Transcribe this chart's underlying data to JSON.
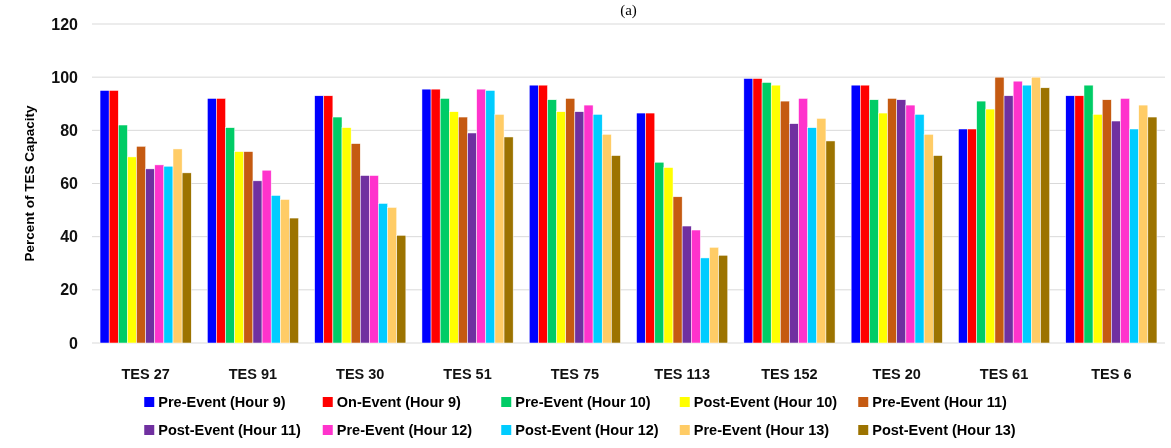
{
  "chart_data": {
    "type": "bar",
    "title": "(a)",
    "ylabel": "Percent of TES Capacity",
    "categories": [
      "TES 27",
      "TES 91",
      "TES 30",
      "TES 51",
      "TES 75",
      "TES 113",
      "TES 152",
      "TES 20",
      "TES 61",
      "TES 6"
    ],
    "series": [
      {
        "name": "Pre-Event (Hour 9)",
        "color": "#0000ff",
        "values": [
          95,
          92,
          93,
          95.5,
          97,
          86.5,
          99.5,
          97,
          80.5,
          93
        ]
      },
      {
        "name": "On-Event (Hour 9)",
        "color": "#ff0000",
        "values": [
          95,
          92,
          93,
          95.5,
          97,
          86.5,
          99.5,
          97,
          80.5,
          93
        ]
      },
      {
        "name": "Pre-Event (Hour 10)",
        "color": "#00cc66",
        "values": [
          82,
          81,
          85,
          92,
          91.5,
          68,
          98,
          91.5,
          91,
          97
        ]
      },
      {
        "name": "Post-Event (Hour 10)",
        "color": "#ffff00",
        "values": [
          70,
          72,
          81,
          87,
          87,
          66,
          97,
          86.5,
          88,
          86
        ]
      },
      {
        "name": "Pre-Event (Hour 11)",
        "color": "#c55a11",
        "values": [
          74,
          72,
          75,
          85,
          92,
          55,
          91,
          92,
          100,
          91.5
        ]
      },
      {
        "name": "Post-Event (Hour 11)",
        "color": "#7030a0",
        "values": [
          65.5,
          61,
          63,
          79,
          87,
          44,
          82.5,
          91.5,
          93,
          83.5
        ]
      },
      {
        "name": "Pre-Event (Hour 12)",
        "color": "#ff33cc",
        "values": [
          67,
          65,
          63,
          95.5,
          89.5,
          42.5,
          92,
          89.5,
          98.5,
          92
        ]
      },
      {
        "name": "Post-Event (Hour 12)",
        "color": "#00ccff",
        "values": [
          66.5,
          55.5,
          52.5,
          95,
          86,
          32,
          81,
          86,
          97,
          80.5
        ]
      },
      {
        "name": "Pre-Event (Hour 13)",
        "color": "#ffcc66",
        "values": [
          73,
          54,
          51,
          86,
          78.5,
          36,
          84.5,
          78.5,
          100,
          89.5
        ]
      },
      {
        "name": "Post-Event (Hour 13)",
        "color": "#9c7300",
        "values": [
          64,
          47,
          40.5,
          77.5,
          70.5,
          33,
          76,
          70.5,
          96,
          85
        ]
      }
    ],
    "ylim": [
      0,
      120
    ],
    "yticks": [
      0,
      20,
      40,
      60,
      80,
      100,
      120
    ],
    "grid": "y",
    "legend": "bottom"
  }
}
